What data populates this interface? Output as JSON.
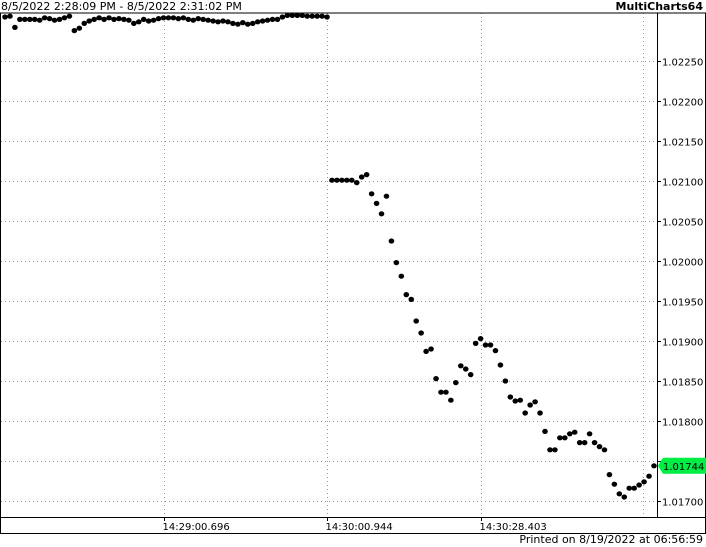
{
  "header": {
    "date_range": "8/5/2022 2:28:09 PM - 8/5/2022 2:31:02 PM",
    "brand": "MultiCharts64"
  },
  "footer": {
    "printed": "Printed on 8/19/2022 at 06:56:59"
  },
  "colors": {
    "background": "#ffffff",
    "points": "#000000",
    "grid": "#9a9a9a",
    "last_price_badge": "#00ee44"
  },
  "chart_data": {
    "type": "scatter",
    "title": "",
    "xlabel": "",
    "ylabel": "",
    "ylim": [
      1.0168,
      1.0231
    ],
    "y_ticks": [
      "1.02250",
      "1.02200",
      "1.02150",
      "1.02100",
      "1.02050",
      "1.02000",
      "1.01950",
      "1.01900",
      "1.01850",
      "1.01800",
      "1.01750",
      "1.01700"
    ],
    "y_tick_values": [
      1.0225,
      1.022,
      1.0215,
      1.021,
      1.0205,
      1.02,
      1.0195,
      1.019,
      1.0185,
      1.018,
      1.0175,
      1.017
    ],
    "x_ticks": [
      "14:29:00.696",
      "14:30:00.944",
      "14:30:28.403"
    ],
    "x_tick_index": [
      33,
      66,
      97
    ],
    "n_points": 132,
    "grid": true,
    "last_value": 1.01744,
    "last_value_label": "1.01744",
    "series": [
      {
        "points": [
          [
            1,
            1.02305
          ],
          [
            2,
            1.02306
          ],
          [
            3,
            1.02292
          ],
          [
            4,
            1.02302
          ],
          [
            5,
            1.02302
          ],
          [
            6,
            1.02302
          ],
          [
            7,
            1.02302
          ],
          [
            8,
            1.02301
          ],
          [
            9,
            1.02304
          ],
          [
            10,
            1.02303
          ],
          [
            11,
            1.02301
          ],
          [
            12,
            1.02302
          ],
          [
            13,
            1.02304
          ],
          [
            14,
            1.02306
          ],
          [
            15,
            1.02288
          ],
          [
            16,
            1.02291
          ],
          [
            17,
            1.02297
          ],
          [
            18,
            1.023
          ],
          [
            19,
            1.02302
          ],
          [
            20,
            1.02304
          ],
          [
            21,
            1.02302
          ],
          [
            22,
            1.02304
          ],
          [
            23,
            1.02302
          ],
          [
            24,
            1.02303
          ],
          [
            25,
            1.02302
          ],
          [
            26,
            1.02301
          ],
          [
            27,
            1.02297
          ],
          [
            28,
            1.02299
          ],
          [
            29,
            1.02302
          ],
          [
            30,
            1.023
          ],
          [
            31,
            1.02301
          ],
          [
            32,
            1.02303
          ],
          [
            33,
            1.02304
          ],
          [
            34,
            1.02304
          ],
          [
            35,
            1.02304
          ],
          [
            36,
            1.02303
          ],
          [
            37,
            1.02304
          ],
          [
            38,
            1.02302
          ],
          [
            39,
            1.02301
          ],
          [
            40,
            1.02303
          ],
          [
            41,
            1.02302
          ],
          [
            42,
            1.02301
          ],
          [
            43,
            1.023
          ],
          [
            44,
            1.02299
          ],
          [
            45,
            1.023
          ],
          [
            46,
            1.02299
          ],
          [
            47,
            1.02297
          ],
          [
            48,
            1.02296
          ],
          [
            49,
            1.02298
          ],
          [
            50,
            1.02296
          ],
          [
            51,
            1.02297
          ],
          [
            52,
            1.02299
          ],
          [
            53,
            1.023
          ],
          [
            54,
            1.02301
          ],
          [
            55,
            1.02302
          ],
          [
            56,
            1.02302
          ],
          [
            57,
            1.02305
          ],
          [
            58,
            1.02307
          ],
          [
            59,
            1.02307
          ],
          [
            60,
            1.02307
          ],
          [
            61,
            1.02307
          ],
          [
            62,
            1.02306
          ],
          [
            63,
            1.02306
          ],
          [
            64,
            1.02306
          ],
          [
            65,
            1.02306
          ],
          [
            66,
            1.02305
          ],
          [
            67,
            1.02101
          ],
          [
            68,
            1.02101
          ],
          [
            69,
            1.02101
          ],
          [
            70,
            1.02101
          ],
          [
            71,
            1.02101
          ],
          [
            72,
            1.02098
          ],
          [
            73,
            1.02105
          ],
          [
            74,
            1.02108
          ],
          [
            75,
            1.02084
          ],
          [
            76,
            1.02072
          ],
          [
            77,
            1.02059
          ],
          [
            78,
            1.02081
          ],
          [
            79,
            1.02025
          ],
          [
            80,
            1.01998
          ],
          [
            81,
            1.01981
          ],
          [
            82,
            1.01958
          ],
          [
            83,
            1.01952
          ],
          [
            84,
            1.01925
          ],
          [
            85,
            1.0191
          ],
          [
            86,
            1.01887
          ],
          [
            87,
            1.0189
          ],
          [
            88,
            1.01853
          ],
          [
            89,
            1.01836
          ],
          [
            90,
            1.01836
          ],
          [
            91,
            1.01826
          ],
          [
            92,
            1.01848
          ],
          [
            93,
            1.01869
          ],
          [
            94,
            1.01865
          ],
          [
            95,
            1.01858
          ],
          [
            96,
            1.01897
          ],
          [
            97,
            1.01903
          ],
          [
            98,
            1.01895
          ],
          [
            99,
            1.01895
          ],
          [
            100,
            1.01888
          ],
          [
            101,
            1.0187
          ],
          [
            102,
            1.0185
          ],
          [
            103,
            1.0183
          ],
          [
            104,
            1.01825
          ],
          [
            105,
            1.01826
          ],
          [
            106,
            1.0181
          ],
          [
            107,
            1.0182
          ],
          [
            108,
            1.01824
          ],
          [
            109,
            1.0181
          ],
          [
            110,
            1.01787
          ],
          [
            111,
            1.01764
          ],
          [
            112,
            1.01764
          ],
          [
            113,
            1.01779
          ],
          [
            114,
            1.01779
          ],
          [
            115,
            1.01784
          ],
          [
            116,
            1.01786
          ],
          [
            117,
            1.01773
          ],
          [
            118,
            1.01773
          ],
          [
            119,
            1.01784
          ],
          [
            120,
            1.01773
          ],
          [
            121,
            1.01768
          ],
          [
            122,
            1.01764
          ],
          [
            123,
            1.01733
          ],
          [
            124,
            1.01721
          ],
          [
            125,
            1.01709
          ],
          [
            126,
            1.01705
          ],
          [
            127,
            1.01716
          ],
          [
            128,
            1.01716
          ],
          [
            129,
            1.0172
          ],
          [
            130,
            1.01724
          ],
          [
            131,
            1.01731
          ],
          [
            132,
            1.01744
          ]
        ]
      }
    ]
  }
}
